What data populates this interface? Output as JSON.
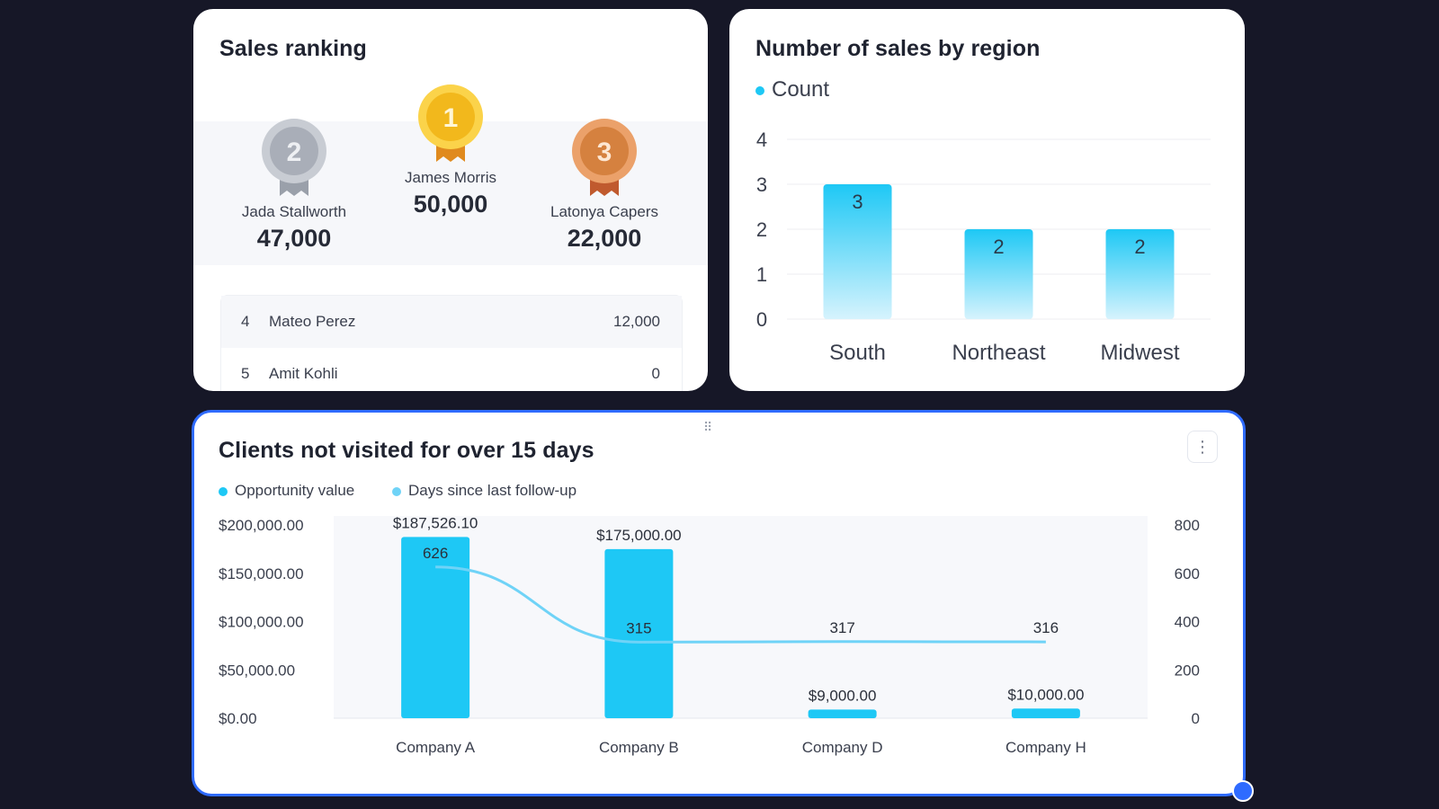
{
  "ranking": {
    "title": "Sales ranking",
    "podium": [
      {
        "rank": "1",
        "name": "James Morris",
        "value": "50,000"
      },
      {
        "rank": "2",
        "name": "Jada Stallworth",
        "value": "47,000"
      },
      {
        "rank": "3",
        "name": "Latonya Capers",
        "value": "22,000"
      }
    ],
    "list": [
      {
        "rank": "4",
        "name": "Mateo Perez",
        "value": "12,000"
      },
      {
        "rank": "5",
        "name": "Amit Kohli",
        "value": "0"
      }
    ]
  },
  "region": {
    "title": "Number of sales by region",
    "legend": "Count"
  },
  "clients": {
    "title": "Clients not visited for over 15 days",
    "legend_opportunity": "Opportunity value",
    "legend_days": "Days since last follow-up",
    "menu_icon": "kebab-menu-icon",
    "drag_icon": "drag-handle-icon"
  },
  "colors": {
    "bar": "#1ec8f5",
    "bar_light": "#d6f3fd",
    "line": "#6fd3f7",
    "gold": "#f5c518",
    "silver": "#b3b7bf",
    "bronze": "#d98a4a",
    "selection": "#2f6bff"
  },
  "chart_data": [
    {
      "type": "bar",
      "title": "Number of sales by region",
      "categories": [
        "South",
        "Northeast",
        "Midwest"
      ],
      "series": [
        {
          "name": "Count",
          "values": [
            3,
            2,
            2
          ]
        }
      ],
      "ylim": [
        0,
        4
      ],
      "yticks": [
        "0",
        "1",
        "2",
        "3",
        "4"
      ],
      "data_labels": [
        "3",
        "2",
        "2"
      ],
      "grid": true,
      "legend": "top-left"
    },
    {
      "type": "bar",
      "title": "Clients not visited for over 15 days",
      "categories": [
        "Company A",
        "Company B",
        "Company D",
        "Company H"
      ],
      "series": [
        {
          "name": "Opportunity value",
          "type": "bar",
          "axis": "left",
          "values": [
            187526.1,
            175000.0,
            9000.0,
            10000.0
          ],
          "labels": [
            "$187,526.10",
            "$175,000.00",
            "$9,000.00",
            "$10,000.00"
          ]
        },
        {
          "name": "Days since last follow-up",
          "type": "line",
          "axis": "right",
          "values": [
            626,
            315,
            317,
            316
          ],
          "labels": [
            "626",
            "315",
            "317",
            "316"
          ]
        }
      ],
      "ylim_left": [
        0,
        200000
      ],
      "yticks_left": [
        "$0.00",
        "$50,000.00",
        "$100,000.00",
        "$150,000.00",
        "$200,000.00"
      ],
      "ylim_right": [
        0,
        800
      ],
      "yticks_right": [
        "0",
        "200",
        "400",
        "600",
        "800"
      ],
      "legend": "top-left"
    }
  ]
}
